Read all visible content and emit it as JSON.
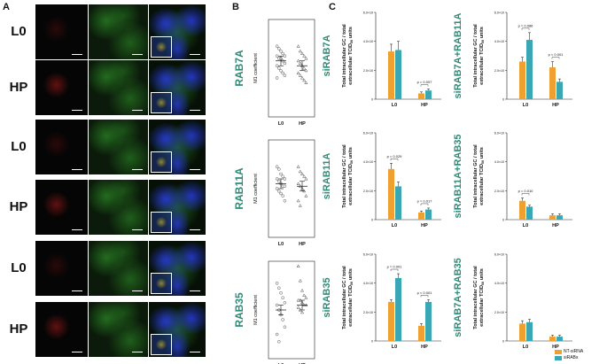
{
  "panels": {
    "A": "A",
    "B": "B",
    "C": "C"
  },
  "panelA": {
    "row_labels": [
      "L0",
      "HP",
      "L0",
      "HP",
      "L0",
      "HP"
    ]
  },
  "colors": {
    "teal_label": "#2e8b78",
    "nt_sirna": "#f0a030",
    "sirabs": "#3aa7b5",
    "micro_red": "#d02020",
    "micro_green": "#38b030",
    "micro_blue": "#2838d8"
  },
  "panelB": {
    "ylabel": "M1 coefficient",
    "charts": [
      {
        "label": "RAB7A",
        "categories": [
          "L0",
          "HP"
        ]
      },
      {
        "label": "RAB11A",
        "categories": [
          "L0",
          "HP"
        ]
      },
      {
        "label": "RAB35",
        "categories": [
          "L0",
          "HP"
        ]
      }
    ]
  },
  "panelC": {
    "ylabel_line1": "Total intracellular GC / total",
    "ylabel_line2": "extracellular TCID",
    "ylabel_sub": "50",
    "ylabel_tail": " units",
    "legend": [
      "NT-siRNA",
      "siRABs"
    ],
    "charts": [
      {
        "label": "siRAB7A",
        "yticks": [
          "0",
          "2.0×10",
          "4.0×10",
          "6.0×10"
        ],
        "categories": [
          "L0",
          "HP"
        ],
        "pvalues": [
          "p = 0.007"
        ]
      },
      {
        "label": "siRAB7A+RAB11A",
        "yticks": [
          "0",
          "2.0×10",
          "4.0×10",
          "6.0×10"
        ],
        "categories": [
          "L0",
          "HP"
        ],
        "pvalues": [
          "p = 0.086",
          "p < 0.001"
        ]
      },
      {
        "label": "siRAB11A",
        "yticks": [
          "0",
          "2.0×10",
          "4.0×10",
          "6.0×10"
        ],
        "categories": [
          "L0",
          "HP"
        ],
        "pvalues": [
          "p = 0.029",
          "p = 0.017"
        ]
      },
      {
        "label": "siRAB11A+RAB35",
        "yticks": [
          "0",
          "2.0×10",
          "4.0×10",
          "6.0×10"
        ],
        "categories": [
          "L0",
          "HP"
        ],
        "pvalues": [
          "p = 0.010"
        ]
      },
      {
        "label": "siRAB35",
        "yticks": [
          "0",
          "2.0×10",
          "4.0×10",
          "6.0×10"
        ],
        "categories": [
          "L0",
          "HP"
        ],
        "pvalues": [
          "p = 0.001",
          "p < 0.001"
        ]
      },
      {
        "label": "siRAB7A+RAB35",
        "yticks": [
          "0",
          "2.0×10",
          "4.0×10",
          "6.0×10"
        ],
        "categories": [
          "L0",
          "HP"
        ],
        "pvalues": []
      }
    ]
  },
  "chart_data": [
    {
      "type": "scatter",
      "label": "RAB7A",
      "categories": [
        "L0",
        "HP"
      ],
      "ylabel": "M1 coefficient",
      "series": [
        {
          "group": "L0",
          "mean": 0.23,
          "sem": 0.02,
          "points": [
            0.29,
            0.28,
            0.27,
            0.26,
            0.25,
            0.25,
            0.24,
            0.24,
            0.23,
            0.22,
            0.21,
            0.2,
            0.19,
            0.18,
            0.17,
            0.16
          ]
        },
        {
          "group": "HP",
          "mean": 0.21,
          "sem": 0.02,
          "points": [
            0.29,
            0.27,
            0.26,
            0.25,
            0.24,
            0.23,
            0.22,
            0.21,
            0.2,
            0.19,
            0.18,
            0.17,
            0.16,
            0.15,
            0.14
          ]
        }
      ]
    },
    {
      "type": "scatter",
      "label": "RAB11A",
      "categories": [
        "L0",
        "HP"
      ],
      "ylabel": "M1 coefficient",
      "series": [
        {
          "group": "L0",
          "mean": 0.22,
          "sem": 0.02,
          "points": [
            0.29,
            0.28,
            0.26,
            0.25,
            0.24,
            0.24,
            0.23,
            0.22,
            0.21,
            0.21,
            0.2,
            0.19,
            0.18,
            0.17,
            0.15
          ]
        },
        {
          "group": "HP",
          "mean": 0.21,
          "sem": 0.02,
          "points": [
            0.29,
            0.27,
            0.26,
            0.25,
            0.24,
            0.22,
            0.21,
            0.2,
            0.19,
            0.17,
            0.15,
            0.13
          ]
        }
      ]
    },
    {
      "type": "scatter",
      "label": "RAB35",
      "categories": [
        "L0",
        "HP"
      ],
      "ylabel": "M1 coefficient",
      "series": [
        {
          "group": "L0",
          "mean": 0.2,
          "sem": 0.02,
          "points": [
            0.31,
            0.29,
            0.27,
            0.25,
            0.23,
            0.22,
            0.2,
            0.18,
            0.16,
            0.13,
            0.1,
            0.07
          ]
        },
        {
          "group": "HP",
          "mean": 0.22,
          "sem": 0.02,
          "points": [
            0.38,
            0.32,
            0.28,
            0.26,
            0.25,
            0.24,
            0.24,
            0.23,
            0.22,
            0.22,
            0.21,
            0.2,
            0.19
          ]
        }
      ]
    },
    {
      "type": "bar",
      "label": "siRAB7A",
      "categories": [
        "L0",
        "HP"
      ],
      "ylim": [
        0,
        6
      ],
      "exponent": "10^x",
      "series": [
        {
          "name": "NT-siRNA",
          "values": [
            3.3,
            0.4
          ],
          "sem": [
            0.5,
            0.1
          ]
        },
        {
          "name": "siRABs",
          "values": [
            3.4,
            0.6
          ],
          "sem": [
            0.6,
            0.1
          ]
        }
      ]
    },
    {
      "type": "bar",
      "label": "siRAB7A+RAB11A",
      "categories": [
        "L0",
        "HP"
      ],
      "ylim": [
        0,
        6
      ],
      "series": [
        {
          "name": "NT-siRNA",
          "values": [
            2.6,
            2.2
          ],
          "sem": [
            0.3,
            0.4
          ]
        },
        {
          "name": "siRABs",
          "values": [
            4.1,
            1.2
          ],
          "sem": [
            0.5,
            0.2
          ]
        }
      ]
    },
    {
      "type": "bar",
      "label": "siRAB11A",
      "categories": [
        "L0",
        "HP"
      ],
      "ylim": [
        0,
        6
      ],
      "series": [
        {
          "name": "NT-siRNA",
          "values": [
            3.5,
            0.5
          ],
          "sem": [
            0.4,
            0.1
          ]
        },
        {
          "name": "siRABs",
          "values": [
            2.3,
            0.7
          ],
          "sem": [
            0.3,
            0.1
          ]
        }
      ]
    },
    {
      "type": "bar",
      "label": "siRAB11A+RAB35",
      "categories": [
        "L0",
        "HP"
      ],
      "ylim": [
        0,
        6
      ],
      "series": [
        {
          "name": "NT-siRNA",
          "values": [
            1.3,
            0.3
          ],
          "sem": [
            0.2,
            0.1
          ]
        },
        {
          "name": "siRABs",
          "values": [
            0.9,
            0.3
          ],
          "sem": [
            0.1,
            0.1
          ]
        }
      ]
    },
    {
      "type": "bar",
      "label": "siRAB35",
      "categories": [
        "L0",
        "HP"
      ],
      "ylim": [
        0,
        4
      ],
      "series": [
        {
          "name": "NT-siRNA",
          "values": [
            1.8,
            0.7
          ],
          "sem": [
            0.1,
            0.1
          ]
        },
        {
          "name": "siRABs",
          "values": [
            2.9,
            1.8
          ],
          "sem": [
            0.2,
            0.1
          ]
        }
      ]
    },
    {
      "type": "bar",
      "label": "siRAB7A+RAB35",
      "categories": [
        "L0",
        "HP"
      ],
      "ylim": [
        0,
        6
      ],
      "series": [
        {
          "name": "NT-siRNA",
          "values": [
            1.2,
            0.3
          ],
          "sem": [
            0.2,
            0.1
          ]
        },
        {
          "name": "siRABs",
          "values": [
            1.3,
            0.3
          ],
          "sem": [
            0.2,
            0.1
          ]
        }
      ]
    }
  ]
}
